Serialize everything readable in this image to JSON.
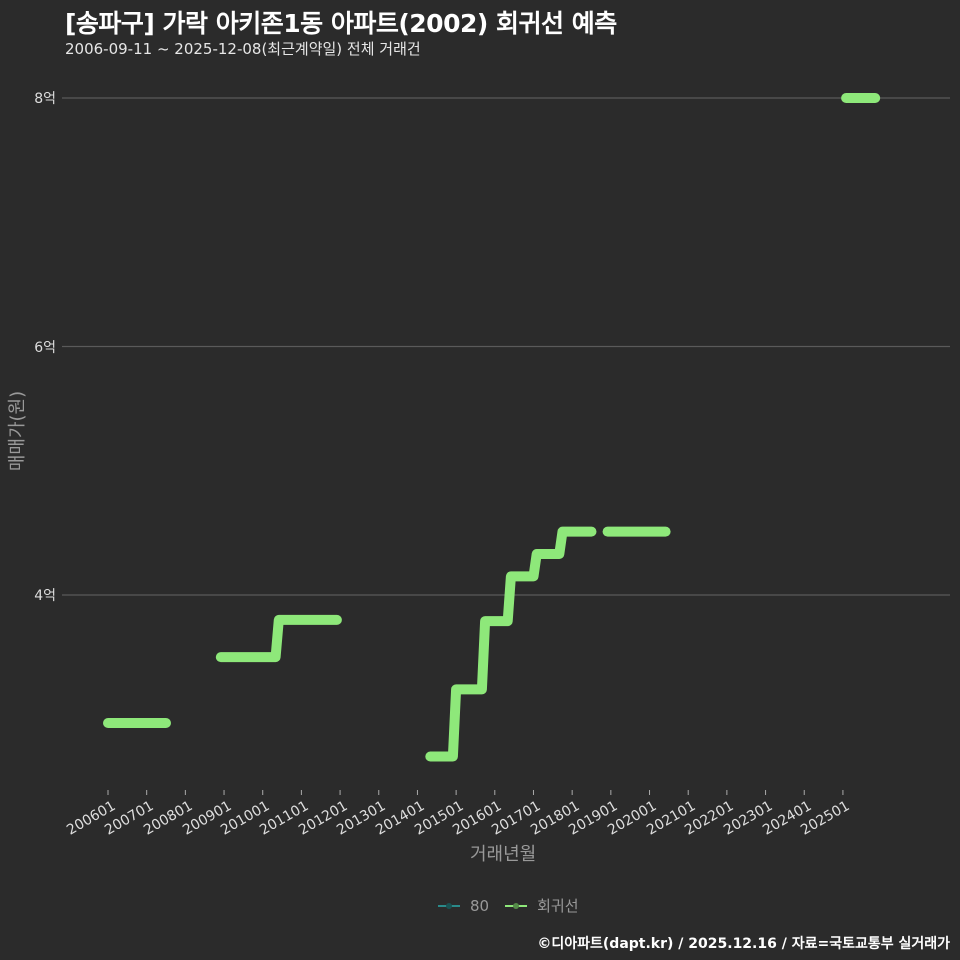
{
  "header": {
    "title": "[송파구] 가락 아키존1동 아파트(2002) 회귀선 예측",
    "subtitle": "2006-09-11 ~ 2025-12-08(최근계약일) 전체 거래건"
  },
  "axes": {
    "ylabel": "매매가(원)",
    "xlabel": "거래년월",
    "yticks": [
      "8억",
      "6억",
      "4억"
    ],
    "xticks": [
      "200601",
      "200701",
      "200801",
      "200901",
      "201001",
      "201101",
      "201201",
      "201301",
      "201401",
      "201501",
      "201601",
      "201701",
      "201801",
      "201901",
      "202001",
      "202101",
      "202201",
      "202301",
      "202401",
      "202501"
    ]
  },
  "legend": {
    "items": [
      {
        "label": "80",
        "color": "#2a8a8a"
      },
      {
        "label": "회귀선",
        "color": "#8ee87a"
      }
    ]
  },
  "footer": "©디아파트(dapt.kr) / 2025.12.16 / 자료=국토교통부 실거래가",
  "colors": {
    "background": "#2b2b2b",
    "grid": "#5a5a5a",
    "line": "#8ee87a"
  },
  "chart_data": {
    "type": "line",
    "title": "[송파구] 가락 아키존1동 아파트(2002) 회귀선 예측",
    "subtitle": "2006-09-11 ~ 2025-12-08(최근계약일) 전체 거래건",
    "xlabel": "거래년월",
    "ylabel": "매매가(원)",
    "y_unit": "억",
    "ylim": [
      2.6,
      8.1
    ],
    "yticks": [
      4,
      6,
      8
    ],
    "grid": true,
    "legend_position": "bottom",
    "series": [
      {
        "name": "회귀선",
        "color": "#8ee87a",
        "segments": [
          [
            {
              "x": "200601",
              "y": 2.97
            },
            {
              "x": "200707",
              "y": 2.97
            }
          ],
          [
            {
              "x": "200812",
              "y": 3.5
            },
            {
              "x": "201005",
              "y": 3.5
            },
            {
              "x": "201006",
              "y": 3.8
            },
            {
              "x": "201112",
              "y": 3.8
            }
          ],
          [
            {
              "x": "201405",
              "y": 2.7
            },
            {
              "x": "201412",
              "y": 2.7
            },
            {
              "x": "201501",
              "y": 3.24
            },
            {
              "x": "201509",
              "y": 3.24
            },
            {
              "x": "201510",
              "y": 3.79
            },
            {
              "x": "201605",
              "y": 3.79
            },
            {
              "x": "201606",
              "y": 4.15
            },
            {
              "x": "201701",
              "y": 4.15
            },
            {
              "x": "201702",
              "y": 4.33
            },
            {
              "x": "201709",
              "y": 4.33
            },
            {
              "x": "201710",
              "y": 4.51
            },
            {
              "x": "201807",
              "y": 4.51
            }
          ],
          [
            {
              "x": "201812",
              "y": 4.51
            },
            {
              "x": "202006",
              "y": 4.51
            }
          ],
          [
            {
              "x": "202502",
              "y": 8.0
            },
            {
              "x": "202511",
              "y": 8.0
            }
          ]
        ]
      },
      {
        "name": "80",
        "color": "#2a8a8a",
        "segments": []
      }
    ]
  }
}
